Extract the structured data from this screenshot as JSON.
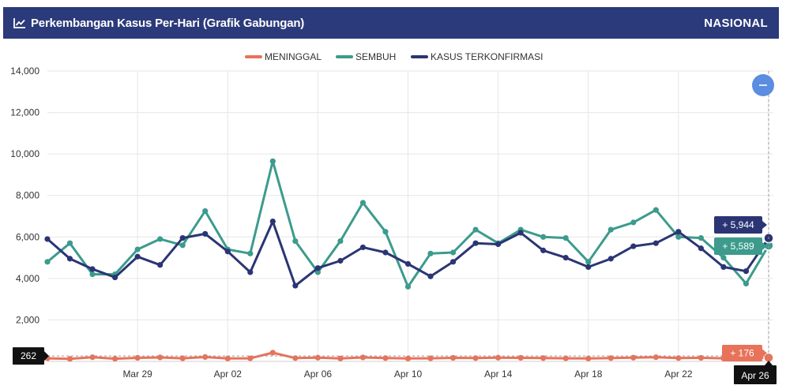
{
  "header": {
    "title": "Perkembangan Kasus Per-Hari (Grafik Gabungan)",
    "region": "NASIONAL",
    "icon": "line-chart-icon"
  },
  "zoom_button": {
    "icon": "minus-icon",
    "color": "#5b8de0"
  },
  "chart_data": {
    "type": "line",
    "ylim": [
      0,
      14000
    ],
    "yticks": [
      0,
      2000,
      4000,
      6000,
      8000,
      10000,
      12000,
      14000
    ],
    "ytick_labels": [
      "0",
      "2,000",
      "4,000",
      "6,000",
      "8,000",
      "10,000",
      "12,000",
      "14,000"
    ],
    "x_dates": [
      "Mar 25",
      "Mar 26",
      "Mar 27",
      "Mar 28",
      "Mar 29",
      "Mar 30",
      "Mar 31",
      "Apr 01",
      "Apr 02",
      "Apr 03",
      "Apr 04",
      "Apr 05",
      "Apr 06",
      "Apr 07",
      "Apr 08",
      "Apr 09",
      "Apr 10",
      "Apr 11",
      "Apr 12",
      "Apr 13",
      "Apr 14",
      "Apr 15",
      "Apr 16",
      "Apr 17",
      "Apr 18",
      "Apr 19",
      "Apr 20",
      "Apr 21",
      "Apr 22",
      "Apr 23",
      "Apr 24",
      "Apr 25",
      "Apr 26"
    ],
    "xtick_labels": [
      "Mar 29",
      "Apr 02",
      "Apr 06",
      "Apr 10",
      "Apr 14",
      "Apr 18",
      "Apr 22",
      "Apr 26"
    ],
    "series": [
      {
        "name": "MENINGGAL",
        "color": "#e8725a",
        "values": [
          150,
          120,
          200,
          130,
          170,
          190,
          150,
          210,
          140,
          150,
          420,
          160,
          180,
          140,
          190,
          160,
          140,
          150,
          170,
          160,
          180,
          170,
          160,
          150,
          140,
          160,
          180,
          200,
          160,
          170,
          150,
          160,
          176
        ]
      },
      {
        "name": "SEMBUH",
        "color": "#3c9b8c",
        "values": [
          4800,
          5700,
          4200,
          4200,
          5400,
          5900,
          5600,
          7250,
          5400,
          5200,
          9650,
          5800,
          4300,
          5800,
          7650,
          6250,
          3600,
          5200,
          5250,
          6350,
          5700,
          6350,
          6000,
          5950,
          4800,
          6350,
          6700,
          7300,
          6000,
          5950,
          5000,
          3750,
          5589
        ]
      },
      {
        "name": "KASUS TERKONFIRMASI",
        "color": "#2b3574",
        "values": [
          5900,
          4950,
          4450,
          4050,
          5050,
          4650,
          5950,
          6150,
          5300,
          4300,
          6750,
          3650,
          4500,
          4850,
          5500,
          5250,
          4700,
          4100,
          4800,
          5700,
          5650,
          6200,
          5350,
          5000,
          4550,
          4950,
          5550,
          5700,
          6250,
          5450,
          4550,
          4350,
          5944
        ]
      }
    ],
    "tooltips": {
      "kasus_label": "+ 5,944",
      "sembuh_label": "+ 5,589",
      "meninggal_label": "+ 176",
      "crosshair_y_label": "262",
      "crosshair_x_label": "Apr 26",
      "crosshair_y_value": 262
    },
    "grid": true,
    "legend_position": "top-center"
  }
}
